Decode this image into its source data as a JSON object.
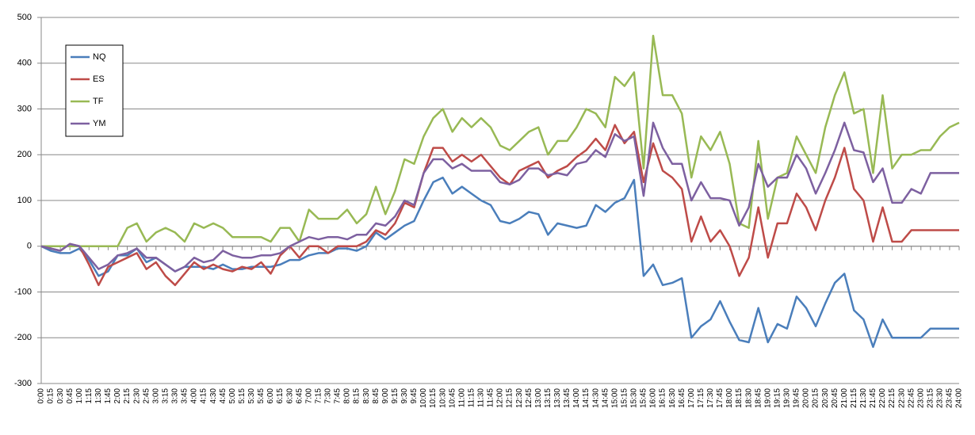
{
  "chart_data": {
    "type": "line",
    "categories": [
      "0:00",
      "0:15",
      "0:30",
      "0:45",
      "1:00",
      "1:15",
      "1:30",
      "1:45",
      "2:00",
      "2:15",
      "2:30",
      "2:45",
      "3:00",
      "3:15",
      "3:30",
      "3:45",
      "4:00",
      "4:15",
      "4:30",
      "4:45",
      "5:00",
      "5:15",
      "5:30",
      "5:45",
      "6:00",
      "6:15",
      "6:30",
      "6:45",
      "7:00",
      "7:15",
      "7:30",
      "7:45",
      "8:00",
      "8:15",
      "8:30",
      "8:45",
      "9:00",
      "9:15",
      "9:30",
      "9:45",
      "10:00",
      "10:15",
      "10:30",
      "10:45",
      "11:00",
      "11:15",
      "11:30",
      "11:45",
      "12:00",
      "12:15",
      "12:30",
      "12:45",
      "13:00",
      "13:15",
      "13:30",
      "13:45",
      "14:00",
      "14:15",
      "14:30",
      "14:45",
      "15:00",
      "15:15",
      "15:30",
      "15:45",
      "16:00",
      "16:15",
      "16:30",
      "16:45",
      "17:00",
      "17:15",
      "17:30",
      "17:45",
      "18:00",
      "18:15",
      "18:30",
      "18:45",
      "19:00",
      "19:15",
      "19:30",
      "19:45",
      "20:00",
      "20:15",
      "20:30",
      "20:45",
      "21:00",
      "21:15",
      "21:30",
      "21:45",
      "22:00",
      "22:15",
      "22:30",
      "22:45",
      "23:00",
      "23:15",
      "23:30",
      "23:45",
      "24:00"
    ],
    "series": [
      {
        "name": "NQ",
        "color": "#4a7ebb",
        "values": [
          0,
          -10,
          -15,
          -15,
          -5,
          -30,
          -65,
          -55,
          -20,
          -20,
          -5,
          -35,
          -25,
          -40,
          -55,
          -45,
          -45,
          -45,
          -50,
          -40,
          -50,
          -50,
          -45,
          -45,
          -45,
          -40,
          -30,
          -30,
          -20,
          -15,
          -15,
          -5,
          -5,
          -10,
          0,
          30,
          15,
          30,
          45,
          55,
          100,
          140,
          150,
          115,
          130,
          115,
          100,
          90,
          55,
          50,
          60,
          75,
          70,
          25,
          50,
          45,
          40,
          45,
          90,
          75,
          95,
          105,
          145,
          -65,
          -40,
          -85,
          -80,
          -70,
          -200,
          -175,
          -160,
          -120,
          -165,
          -205,
          -210,
          -135,
          -210,
          -170,
          -180,
          -110,
          -135,
          -175,
          -125,
          -80,
          -60,
          -140,
          -160,
          -220,
          -160,
          -200,
          -200,
          -200,
          -200,
          -180,
          -180,
          -180,
          -180
        ]
      },
      {
        "name": "ES",
        "color": "#be4b48",
        "values": [
          0,
          -5,
          -10,
          5,
          0,
          -40,
          -85,
          -45,
          -35,
          -25,
          -15,
          -50,
          -35,
          -65,
          -85,
          -60,
          -35,
          -50,
          -40,
          -50,
          -55,
          -45,
          -50,
          -35,
          -60,
          -20,
          0,
          -25,
          0,
          0,
          -15,
          0,
          0,
          0,
          10,
          35,
          25,
          50,
          95,
          85,
          160,
          215,
          215,
          185,
          200,
          185,
          200,
          175,
          150,
          135,
          165,
          175,
          185,
          150,
          165,
          175,
          195,
          210,
          235,
          210,
          265,
          225,
          250,
          140,
          225,
          165,
          150,
          125,
          10,
          65,
          10,
          35,
          0,
          -65,
          -25,
          85,
          -25,
          50,
          50,
          115,
          85,
          35,
          100,
          150,
          215,
          125,
          100,
          10,
          85,
          10,
          10,
          35,
          35,
          35,
          35,
          35,
          35
        ]
      },
      {
        "name": "TF",
        "color": "#98b954",
        "values": [
          0,
          0,
          0,
          0,
          0,
          0,
          0,
          0,
          0,
          40,
          50,
          10,
          30,
          40,
          30,
          10,
          50,
          40,
          50,
          40,
          20,
          20,
          20,
          20,
          10,
          40,
          40,
          10,
          80,
          60,
          60,
          60,
          80,
          50,
          70,
          130,
          70,
          120,
          190,
          180,
          240,
          280,
          300,
          250,
          280,
          260,
          280,
          260,
          220,
          210,
          230,
          250,
          260,
          200,
          230,
          230,
          260,
          300,
          290,
          260,
          370,
          350,
          380,
          170,
          460,
          330,
          330,
          290,
          150,
          240,
          210,
          250,
          180,
          50,
          40,
          230,
          60,
          150,
          160,
          240,
          200,
          160,
          260,
          330,
          380,
          290,
          300,
          160,
          330,
          170,
          200,
          200,
          210,
          210,
          240,
          260,
          270
        ]
      },
      {
        "name": "YM",
        "color": "#7d60a0",
        "values": [
          0,
          -5,
          -10,
          5,
          0,
          -25,
          -50,
          -40,
          -20,
          -15,
          -5,
          -25,
          -25,
          -40,
          -55,
          -45,
          -25,
          -35,
          -30,
          -10,
          -20,
          -25,
          -25,
          -20,
          -20,
          -15,
          0,
          10,
          20,
          15,
          20,
          20,
          15,
          25,
          25,
          50,
          45,
          65,
          100,
          90,
          160,
          190,
          190,
          170,
          180,
          165,
          165,
          165,
          140,
          135,
          145,
          170,
          170,
          155,
          160,
          155,
          180,
          185,
          210,
          195,
          245,
          230,
          240,
          110,
          270,
          215,
          180,
          180,
          100,
          140,
          105,
          105,
          100,
          45,
          85,
          180,
          130,
          150,
          150,
          200,
          170,
          115,
          160,
          210,
          270,
          210,
          205,
          140,
          170,
          95,
          95,
          125,
          115,
          160,
          160,
          160,
          160
        ]
      }
    ],
    "ylim": [
      -300,
      500
    ],
    "yticks": [
      -300,
      -200,
      -100,
      0,
      100,
      200,
      300,
      400,
      500
    ],
    "grid": true,
    "legend": "top-left"
  }
}
